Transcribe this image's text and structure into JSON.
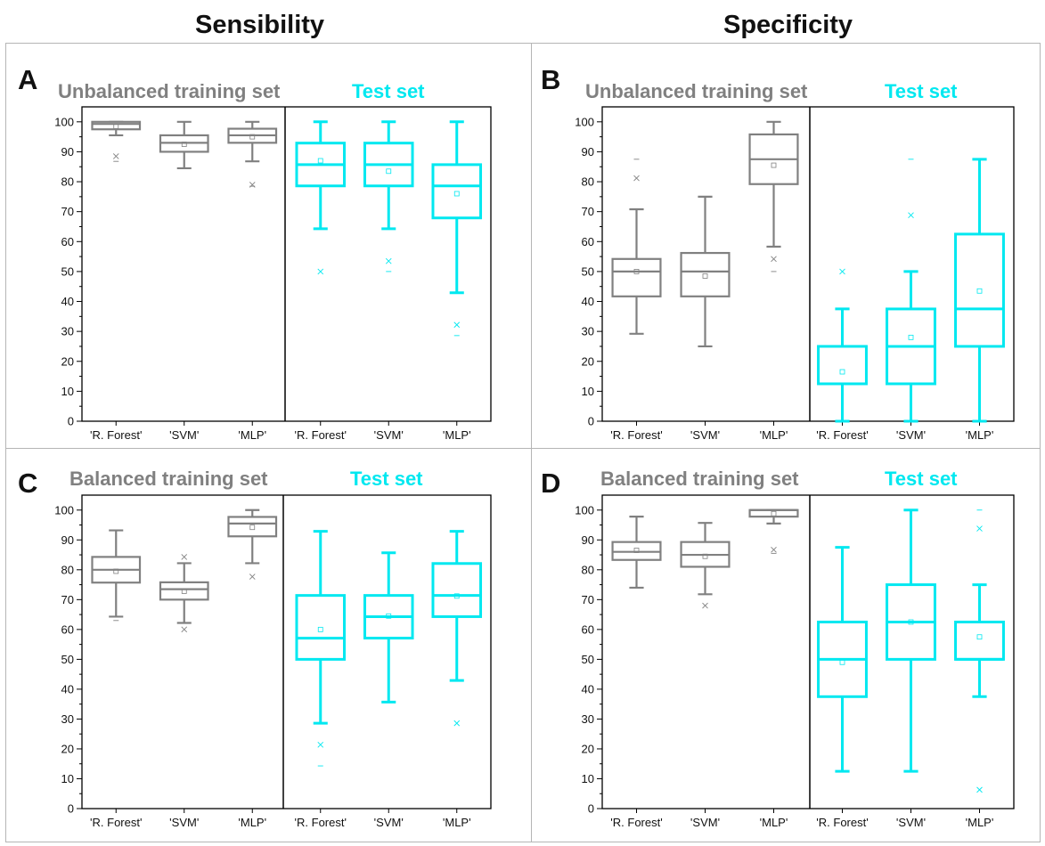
{
  "columns": {
    "left": "Sensibility",
    "right": "Specificity"
  },
  "colors": {
    "train": "#808080",
    "test": "#00e8f0",
    "axis": "#000000"
  },
  "chart_data": [
    {
      "type": "box",
      "panel": "A",
      "train_label": "Unbalanced training set",
      "test_label": "Test set",
      "categories": [
        "'R. Forest'",
        "'SVM'",
        "'MLP'",
        "'R. Forest'",
        "'SVM'",
        "'MLP'"
      ],
      "yticks": [
        0,
        10,
        20,
        30,
        40,
        50,
        60,
        70,
        80,
        90,
        100
      ],
      "ylim": [
        0,
        105
      ],
      "boxes": [
        {
          "group": "train",
          "q1": 97.5,
          "median": 99.3,
          "q3": 100,
          "wlo": 95.5,
          "whi": 100,
          "mean": 98.5,
          "outliers": [
            [
              88.5,
              "x"
            ],
            [
              86.8,
              "-"
            ]
          ]
        },
        {
          "group": "train",
          "q1": 90,
          "median": 93,
          "q3": 95.5,
          "wlo": 84.5,
          "whi": 100,
          "mean": 92.5,
          "outliers": []
        },
        {
          "group": "train",
          "q1": 93,
          "median": 95.5,
          "q3": 97.7,
          "wlo": 86.8,
          "whi": 100,
          "mean": 95,
          "outliers": [
            [
              79,
              "x"
            ],
            [
              78.5,
              "-"
            ]
          ]
        },
        {
          "group": "test",
          "q1": 78.6,
          "median": 85.7,
          "q3": 92.9,
          "wlo": 64.3,
          "whi": 100,
          "mean": 87,
          "outliers": [
            [
              50,
              "x"
            ]
          ]
        },
        {
          "group": "test",
          "q1": 78.6,
          "median": 85.7,
          "q3": 92.9,
          "wlo": 64.3,
          "whi": 100,
          "mean": 83.5,
          "outliers": [
            [
              53.5,
              "x"
            ],
            [
              50,
              "-"
            ]
          ]
        },
        {
          "group": "test",
          "q1": 67.9,
          "median": 78.6,
          "q3": 85.7,
          "wlo": 42.9,
          "whi": 100,
          "mean": 76,
          "outliers": [
            [
              32.2,
              "x"
            ],
            [
              28.6,
              "-"
            ]
          ]
        }
      ]
    },
    {
      "type": "box",
      "panel": "B",
      "train_label": "Unbalanced training set",
      "test_label": "Test set",
      "categories": [
        "'R. Forest'",
        "'SVM'",
        "'MLP'",
        "'R. Forest'",
        "'SVM'",
        "'MLP'"
      ],
      "yticks": [
        0,
        10,
        20,
        30,
        40,
        50,
        60,
        70,
        80,
        90,
        100
      ],
      "ylim": [
        0,
        105
      ],
      "boxes": [
        {
          "group": "train",
          "q1": 41.7,
          "median": 50,
          "q3": 54.2,
          "wlo": 29.2,
          "whi": 70.8,
          "mean": 50,
          "outliers": [
            [
              81.2,
              "x"
            ],
            [
              87.5,
              "-"
            ]
          ]
        },
        {
          "group": "train",
          "q1": 41.7,
          "median": 50,
          "q3": 56.2,
          "wlo": 25,
          "whi": 75,
          "mean": 48.5,
          "outliers": []
        },
        {
          "group": "train",
          "q1": 79.2,
          "median": 87.5,
          "q3": 95.8,
          "wlo": 58.3,
          "whi": 100,
          "mean": 85.5,
          "outliers": [
            [
              54.2,
              "x"
            ],
            [
              50,
              "-"
            ]
          ]
        },
        {
          "group": "test",
          "q1": 12.5,
          "median": 12.5,
          "q3": 25,
          "wlo": 0,
          "whi": 37.5,
          "mean": 16.5,
          "outliers": [
            [
              50,
              "x"
            ]
          ]
        },
        {
          "group": "test",
          "q1": 12.5,
          "median": 25,
          "q3": 37.5,
          "wlo": 0,
          "whi": 50,
          "mean": 28,
          "outliers": [
            [
              68.8,
              "x"
            ],
            [
              87.5,
              "-"
            ]
          ]
        },
        {
          "group": "test",
          "q1": 25,
          "median": 37.5,
          "q3": 62.5,
          "wlo": 0,
          "whi": 87.5,
          "mean": 43.5,
          "outliers": []
        }
      ]
    },
    {
      "type": "box",
      "panel": "C",
      "train_label": "Balanced training set",
      "test_label": "Test set",
      "categories": [
        "'R. Forest'",
        "'SVM'",
        "'MLP'",
        "'R. Forest'",
        "'SVM'",
        "'MLP'"
      ],
      "yticks": [
        0,
        10,
        20,
        30,
        40,
        50,
        60,
        70,
        80,
        90,
        100
      ],
      "ylim": [
        0,
        105
      ],
      "boxes": [
        {
          "group": "train",
          "q1": 75.7,
          "median": 80,
          "q3": 84.3,
          "wlo": 64.3,
          "whi": 93.2,
          "mean": 79.5,
          "outliers": [
            [
              63,
              "-"
            ]
          ]
        },
        {
          "group": "train",
          "q1": 70,
          "median": 73.5,
          "q3": 75.8,
          "wlo": 62.2,
          "whi": 82.2,
          "mean": 72.8,
          "outliers": [
            [
              84.3,
              "x"
            ],
            [
              60,
              "x"
            ]
          ]
        },
        {
          "group": "train",
          "q1": 91.2,
          "median": 95.5,
          "q3": 97.7,
          "wlo": 82.2,
          "whi": 100,
          "mean": 94.2,
          "outliers": [
            [
              77.7,
              "x"
            ]
          ]
        },
        {
          "group": "test",
          "q1": 50,
          "median": 57.1,
          "q3": 71.4,
          "wlo": 28.6,
          "whi": 92.9,
          "mean": 60,
          "outliers": [
            [
              21.4,
              "x"
            ],
            [
              14.3,
              "-"
            ]
          ]
        },
        {
          "group": "test",
          "q1": 57.1,
          "median": 64.3,
          "q3": 71.4,
          "wlo": 35.7,
          "whi": 85.7,
          "mean": 64.5,
          "outliers": []
        },
        {
          "group": "test",
          "q1": 64.3,
          "median": 71.4,
          "q3": 82.1,
          "wlo": 42.9,
          "whi": 92.9,
          "mean": 71.2,
          "outliers": [
            [
              28.6,
              "x"
            ]
          ]
        }
      ]
    },
    {
      "type": "box",
      "panel": "D",
      "train_label": "Balanced training set",
      "test_label": "Test set",
      "categories": [
        "'R. Forest'",
        "'SVM'",
        "'MLP'",
        "'R. Forest'",
        "'SVM'",
        "'MLP'"
      ],
      "yticks": [
        0,
        10,
        20,
        30,
        40,
        50,
        60,
        70,
        80,
        90,
        100
      ],
      "ylim": [
        0,
        105
      ],
      "boxes": [
        {
          "group": "train",
          "q1": 83.3,
          "median": 86,
          "q3": 89.3,
          "wlo": 74,
          "whi": 97.8,
          "mean": 86.5,
          "outliers": []
        },
        {
          "group": "train",
          "q1": 81,
          "median": 85,
          "q3": 89.3,
          "wlo": 71.8,
          "whi": 95.7,
          "mean": 84.5,
          "outliers": [
            [
              68,
              "x"
            ]
          ]
        },
        {
          "group": "train",
          "q1": 97.8,
          "median": 100,
          "q3": 100,
          "wlo": 95.5,
          "whi": 100,
          "mean": 98.8,
          "outliers": [
            [
              86.7,
              "x"
            ],
            [
              85.5,
              "-"
            ]
          ]
        },
        {
          "group": "test",
          "q1": 37.5,
          "median": 50,
          "q3": 62.5,
          "wlo": 12.5,
          "whi": 87.5,
          "mean": 49,
          "outliers": []
        },
        {
          "group": "test",
          "q1": 50,
          "median": 62.5,
          "q3": 75,
          "wlo": 12.5,
          "whi": 100,
          "mean": 62.5,
          "outliers": []
        },
        {
          "group": "test",
          "q1": 50,
          "median": 50,
          "q3": 62.5,
          "wlo": 37.5,
          "whi": 75,
          "mean": 57.5,
          "outliers": [
            [
              93.8,
              "x"
            ],
            [
              100,
              "-"
            ],
            [
              6.3,
              "x"
            ]
          ]
        }
      ]
    }
  ]
}
